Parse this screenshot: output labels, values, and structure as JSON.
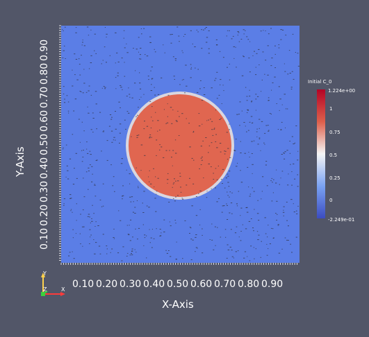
{
  "colors": {
    "background": "#525668",
    "plot_blue": "#5b7ee6",
    "plot_red": "#e06650",
    "interface_light": "#d9d6df",
    "tick_white": "#ffffff",
    "text_white": "#ffffff",
    "speckle": "#2f3446",
    "axis_x_red": "#ff3b3b",
    "axis_y_yellow": "#ffd24d",
    "axis_z_green": "#3cd13c"
  },
  "axes": {
    "x_title": "X-Axis",
    "y_title": "Y-Axis",
    "x_ticks": [
      "0.10",
      "0.20",
      "0.30",
      "0.40",
      "0.50",
      "0.60",
      "0.70",
      "0.80",
      "0.90"
    ],
    "y_ticks": [
      "0.10",
      "0.20",
      "0.30",
      "0.40",
      "0.50",
      "0.60",
      "0.70",
      "0.80",
      "0.90"
    ]
  },
  "colorbar": {
    "title": "Initial C_0",
    "labels": [
      "1.224e+00",
      "1",
      "0.75",
      "0.5",
      "0.25",
      "0",
      "-2.249e-01"
    ],
    "stops": [
      "#b40426",
      "#dd5f4b",
      "#f5f5f5",
      "#7aa2f3",
      "#3b4cc0"
    ]
  },
  "orientation_axes": {
    "x": "X",
    "y": "Y",
    "z": "Z"
  }
}
